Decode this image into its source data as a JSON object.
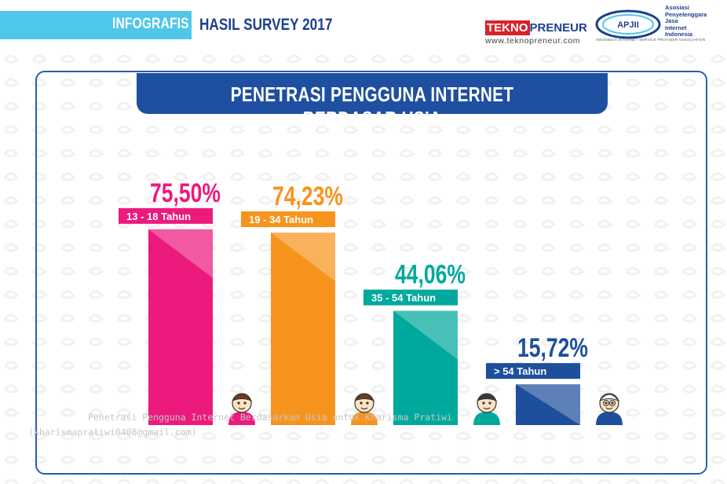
{
  "header": {
    "tag": "INFOGRAFIS",
    "title": "HASIL SURVEY 2017",
    "brand_highlight": "TEKNO",
    "brand_rest": "PRENEUR",
    "brand_url": "www.teknopreneur.com",
    "apjii_badge": "APJII",
    "apjii_lines": [
      "Asosiasi",
      "Penyelenggara",
      "Jasa",
      "Internet",
      "Indonesia"
    ],
    "apjii_sub": "INDONESIA INTERNET SERVICE PROVIDER ASSOCIATION"
  },
  "watermark": {
    "line1": "Penetrasi Pengguna Internet Berdasarkan Usia untuk Kharisma Pratiwi",
    "line2": "(kharismapratiwi0408@gmail.com)"
  },
  "chart_data": {
    "type": "bar",
    "title": "PENETRASI PENGGUNA INTERNET BERDASAR USIA",
    "categories": [
      "13 - 18 Tahun",
      "19 - 34 Tahun",
      "35 - 54 Tahun",
      "> 54 Tahun"
    ],
    "values": [
      75.5,
      74.23,
      44.06,
      15.72
    ],
    "value_labels": [
      "75,50%",
      "74,23%",
      "44,06%",
      "15,72%"
    ],
    "ylim": [
      0,
      100
    ],
    "grid": false,
    "legend": "none",
    "colors": [
      "#ec1a7d",
      "#f7941d",
      "#00a99d",
      "#1e4f9c"
    ],
    "label_colors": [
      "#ec1a7d",
      "#f7941d",
      "#00a99d",
      "#1e4f9c"
    ],
    "icons": [
      "teen-face-icon",
      "young-adult-face-icon",
      "adult-face-icon",
      "elder-face-icon"
    ]
  }
}
